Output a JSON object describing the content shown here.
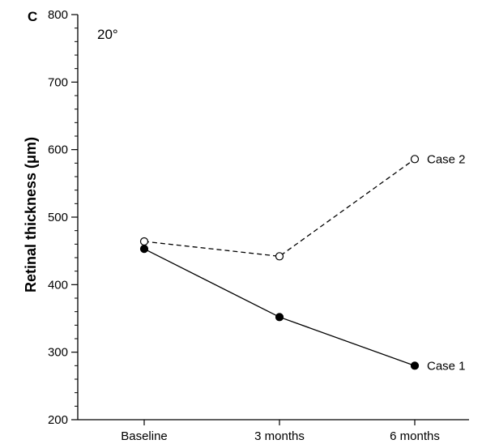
{
  "chart_data": {
    "type": "line",
    "panel_label": "C",
    "annotation": "20°",
    "ylabel": "Retinal thickness (μm)",
    "xlabel": "",
    "categories": [
      "Baseline",
      "3 months",
      "6 months"
    ],
    "ylim": [
      200,
      800
    ],
    "yticks_major": [
      200,
      300,
      400,
      500,
      600,
      700,
      800
    ],
    "ytick_labels": [
      "200",
      "300",
      "400",
      "500",
      "600",
      "700",
      "800"
    ],
    "y_minor_step": 20,
    "grid": false,
    "series": [
      {
        "name": "Case 1",
        "values": [
          453,
          352,
          280
        ],
        "marker": "filled-circle",
        "line": "solid",
        "color": "#000000"
      },
      {
        "name": "Case 2",
        "values": [
          464,
          442,
          586
        ],
        "marker": "open-circle",
        "line": "dashed",
        "color": "#000000"
      }
    ]
  }
}
